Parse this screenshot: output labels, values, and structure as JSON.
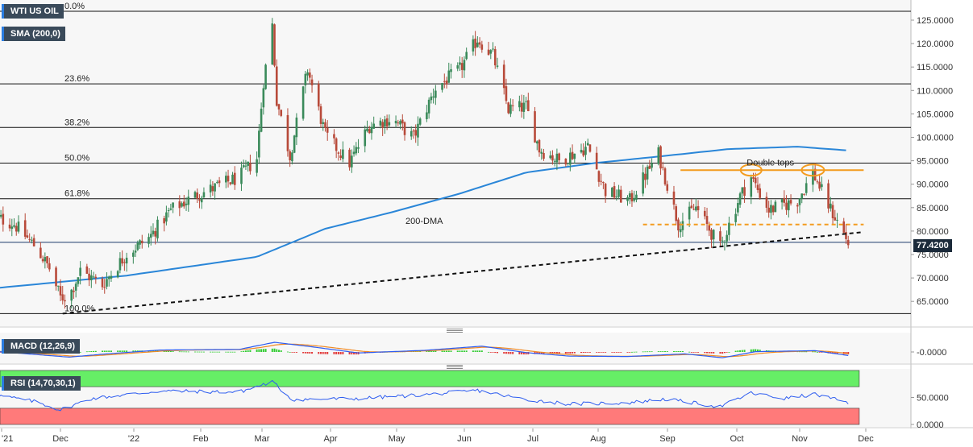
{
  "chart_data": {
    "type": "candlestick",
    "main": {
      "title": "WTI US OIL",
      "indicator": "SMA (200,0)",
      "ylim": [
        61.5,
        127.5
      ],
      "yticks": [
        "125.0000",
        "120.0000",
        "115.0000",
        "110.0000",
        "105.0000",
        "100.0000",
        "95.0000",
        "90.0000",
        "85.0000",
        "80.0000",
        "75.0000",
        "70.0000",
        "65.0000"
      ],
      "last_price": "77.4200",
      "xticks": [
        "'21",
        "Dec",
        "'22",
        "Feb",
        "Mar",
        "Apr",
        "May",
        "Jun",
        "Jul",
        "Aug",
        "Sep",
        "Oct",
        "Nov",
        "Dec"
      ],
      "fib_levels": [
        {
          "label": "0.0%",
          "value": 126.9
        },
        {
          "label": "23.6%",
          "value": 111.4
        },
        {
          "label": "38.2%",
          "value": 102.1
        },
        {
          "label": "50.0%",
          "value": 94.5
        },
        {
          "label": "61.8%",
          "value": 86.9
        },
        {
          "label": "100.0%",
          "value": 62.4
        }
      ],
      "support_line": 77.6,
      "annotations": {
        "double_tops": "Double tops",
        "sma_label": "200-DMA"
      },
      "double_top_level": 93.0,
      "neckline_level": 81.4,
      "trendline": [
        {
          "date": "2021-12-02",
          "value": 62.4
        },
        {
          "date": "2022-11-30",
          "value": 79.8
        }
      ],
      "close_path": [
        {
          "date": "2021-11-01",
          "value": 83.0
        },
        {
          "date": "2021-11-10",
          "value": 81.5
        },
        {
          "date": "2021-11-20",
          "value": 76.5
        },
        {
          "date": "2021-11-26",
          "value": 72.0
        },
        {
          "date": "2021-12-01",
          "value": 65.8
        },
        {
          "date": "2021-12-05",
          "value": 66.2
        },
        {
          "date": "2021-12-10",
          "value": 71.5
        },
        {
          "date": "2021-12-20",
          "value": 68.5
        },
        {
          "date": "2021-12-31",
          "value": 75.2
        },
        {
          "date": "2022-01-10",
          "value": 78.5
        },
        {
          "date": "2022-01-20",
          "value": 84.5
        },
        {
          "date": "2022-01-31",
          "value": 87.5
        },
        {
          "date": "2022-02-10",
          "value": 89.5
        },
        {
          "date": "2022-02-20",
          "value": 91.5
        },
        {
          "date": "2022-02-28",
          "value": 95.5
        },
        {
          "date": "2022-03-03",
          "value": 112.0
        },
        {
          "date": "2022-03-07",
          "value": 124.0
        },
        {
          "date": "2022-03-09",
          "value": 108.0
        },
        {
          "date": "2022-03-15",
          "value": 96.0
        },
        {
          "date": "2022-03-23",
          "value": 114.5
        },
        {
          "date": "2022-03-31",
          "value": 100.5
        },
        {
          "date": "2022-04-11",
          "value": 94.5
        },
        {
          "date": "2022-04-20",
          "value": 102.5
        },
        {
          "date": "2022-04-30",
          "value": 104.0
        },
        {
          "date": "2022-05-10",
          "value": 100.0
        },
        {
          "date": "2022-05-20",
          "value": 110.5
        },
        {
          "date": "2022-05-31",
          "value": 114.5
        },
        {
          "date": "2022-06-08",
          "value": 121.0
        },
        {
          "date": "2022-06-15",
          "value": 117.5
        },
        {
          "date": "2022-06-22",
          "value": 106.0
        },
        {
          "date": "2022-06-30",
          "value": 106.5
        },
        {
          "date": "2022-07-06",
          "value": 97.5
        },
        {
          "date": "2022-07-15",
          "value": 95.0
        },
        {
          "date": "2022-07-28",
          "value": 98.0
        },
        {
          "date": "2022-08-05",
          "value": 88.5
        },
        {
          "date": "2022-08-16",
          "value": 86.5
        },
        {
          "date": "2022-08-29",
          "value": 96.5
        },
        {
          "date": "2022-09-07",
          "value": 81.5
        },
        {
          "date": "2022-09-15",
          "value": 85.0
        },
        {
          "date": "2022-09-26",
          "value": 76.5
        },
        {
          "date": "2022-10-05",
          "value": 87.5
        },
        {
          "date": "2022-10-10",
          "value": 91.5
        },
        {
          "date": "2022-10-18",
          "value": 84.5
        },
        {
          "date": "2022-10-31",
          "value": 86.5
        },
        {
          "date": "2022-11-07",
          "value": 92.5
        },
        {
          "date": "2022-11-14",
          "value": 85.5
        },
        {
          "date": "2022-11-21",
          "value": 79.5
        },
        {
          "date": "2022-11-23",
          "value": 77.42
        }
      ],
      "sma200": [
        {
          "date": "2021-11-01",
          "value": 67.8
        },
        {
          "date": "2021-12-31",
          "value": 70.5
        },
        {
          "date": "2022-02-28",
          "value": 74.5
        },
        {
          "date": "2022-03-31",
          "value": 80.5
        },
        {
          "date": "2022-04-30",
          "value": 84.0
        },
        {
          "date": "2022-05-31",
          "value": 88.0
        },
        {
          "date": "2022-06-30",
          "value": 92.5
        },
        {
          "date": "2022-07-31",
          "value": 94.5
        },
        {
          "date": "2022-08-31",
          "value": 96.0
        },
        {
          "date": "2022-09-30",
          "value": 97.5
        },
        {
          "date": "2022-10-31",
          "value": 98.0
        },
        {
          "date": "2022-11-23",
          "value": 97.2
        }
      ]
    },
    "macd": {
      "label": "MACD (12,26,9)",
      "ytick": "-0.0000",
      "macd_line": [
        {
          "date": "2021-11-01",
          "value": 0.2
        },
        {
          "date": "2021-11-20",
          "value": -0.8
        },
        {
          "date": "2021-12-05",
          "value": -1.6
        },
        {
          "date": "2021-12-20",
          "value": -0.7
        },
        {
          "date": "2022-01-15",
          "value": 0.6
        },
        {
          "date": "2022-02-20",
          "value": 0.8
        },
        {
          "date": "2022-03-08",
          "value": 3.0
        },
        {
          "date": "2022-03-25",
          "value": 1.6
        },
        {
          "date": "2022-04-15",
          "value": -0.3
        },
        {
          "date": "2022-05-15",
          "value": 0.5
        },
        {
          "date": "2022-06-10",
          "value": 1.8
        },
        {
          "date": "2022-06-30",
          "value": -0.2
        },
        {
          "date": "2022-07-20",
          "value": -1.3
        },
        {
          "date": "2022-08-15",
          "value": -1.4
        },
        {
          "date": "2022-09-10",
          "value": -0.6
        },
        {
          "date": "2022-09-27",
          "value": -1.8
        },
        {
          "date": "2022-10-12",
          "value": 0.1
        },
        {
          "date": "2022-11-08",
          "value": 0.4
        },
        {
          "date": "2022-11-23",
          "value": -1.1
        }
      ]
    },
    "rsi": {
      "label": "RSI (14,70,30,1)",
      "yticks": [
        "50.0000",
        "0.0000"
      ],
      "overbought": 70,
      "oversold": 30,
      "series": [
        {
          "date": "2021-11-01",
          "value": 55
        },
        {
          "date": "2021-11-20",
          "value": 42
        },
        {
          "date": "2021-12-01",
          "value": 27
        },
        {
          "date": "2021-12-15",
          "value": 48
        },
        {
          "date": "2022-01-15",
          "value": 62
        },
        {
          "date": "2022-02-20",
          "value": 60
        },
        {
          "date": "2022-03-07",
          "value": 79
        },
        {
          "date": "2022-03-16",
          "value": 46
        },
        {
          "date": "2022-04-15",
          "value": 48
        },
        {
          "date": "2022-05-15",
          "value": 55
        },
        {
          "date": "2022-06-08",
          "value": 63
        },
        {
          "date": "2022-06-30",
          "value": 46
        },
        {
          "date": "2022-07-20",
          "value": 38
        },
        {
          "date": "2022-08-15",
          "value": 40
        },
        {
          "date": "2022-09-01",
          "value": 47
        },
        {
          "date": "2022-09-26",
          "value": 33
        },
        {
          "date": "2022-10-10",
          "value": 58
        },
        {
          "date": "2022-10-25",
          "value": 48
        },
        {
          "date": "2022-11-08",
          "value": 56
        },
        {
          "date": "2022-11-23",
          "value": 40
        }
      ]
    }
  },
  "colors": {
    "up": "#3a8a5a",
    "down": "#b84a3a",
    "sma": "#2a86d8",
    "annotation": "#f39c1f",
    "macd_line": "#2d5cf0",
    "signal_line": "#f08a24",
    "hist_pos": "#33cc33",
    "hist_neg": "#e23a3a",
    "rsi_line": "#2d5cf0",
    "ob_zone": "#66ee66",
    "os_zone": "#ff7a7a"
  }
}
